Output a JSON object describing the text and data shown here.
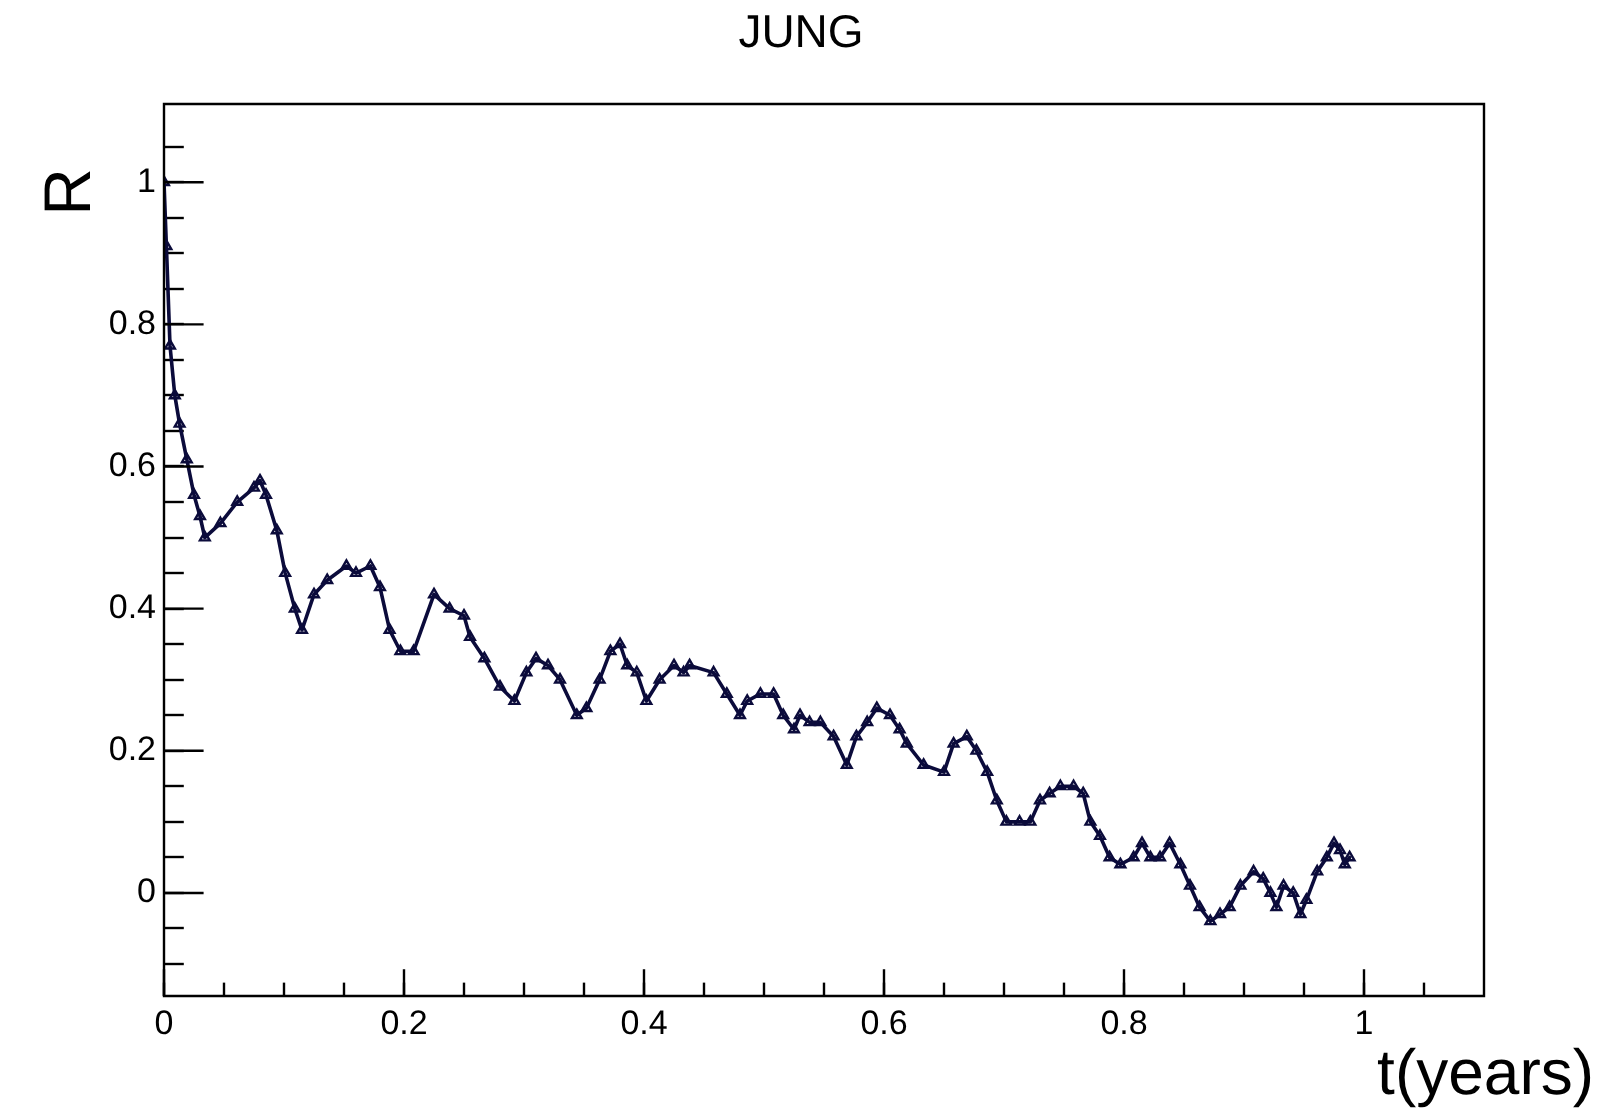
{
  "chart_data": {
    "type": "line",
    "title": "JUNG",
    "xlabel": "t(years)",
    "ylabel": "R",
    "x": [
      0,
      0.002,
      0.005,
      0.009,
      0.013,
      0.019,
      0.025,
      0.03,
      0.034,
      0.047,
      0.061,
      0.075,
      0.08,
      0.085,
      0.094,
      0.101,
      0.109,
      0.115,
      0.125,
      0.136,
      0.152,
      0.16,
      0.172,
      0.18,
      0.188,
      0.197,
      0.208,
      0.225,
      0.238,
      0.25,
      0.255,
      0.267,
      0.28,
      0.292,
      0.302,
      0.31,
      0.32,
      0.33,
      0.344,
      0.352,
      0.363,
      0.372,
      0.38,
      0.386,
      0.394,
      0.402,
      0.413,
      0.425,
      0.433,
      0.438,
      0.458,
      0.469,
      0.48,
      0.486,
      0.497,
      0.508,
      0.516,
      0.525,
      0.53,
      0.538,
      0.547,
      0.558,
      0.569,
      0.577,
      0.586,
      0.594,
      0.605,
      0.613,
      0.619,
      0.633,
      0.65,
      0.658,
      0.669,
      0.677,
      0.686,
      0.694,
      0.702,
      0.713,
      0.722,
      0.73,
      0.738,
      0.747,
      0.758,
      0.766,
      0.772,
      0.78,
      0.788,
      0.797,
      0.808,
      0.815,
      0.822,
      0.83,
      0.838,
      0.847,
      0.855,
      0.863,
      0.872,
      0.88,
      0.888,
      0.897,
      0.908,
      0.916,
      0.922,
      0.927,
      0.933,
      0.941,
      0.947,
      0.952,
      0.961,
      0.969,
      0.975,
      0.98,
      0.984,
      0.988
    ],
    "series": [
      {
        "color": "#0b0b3b",
        "values": [
          1,
          0.91,
          0.77,
          0.7,
          0.66,
          0.61,
          0.56,
          0.53,
          0.5,
          0.52,
          0.55,
          0.57,
          0.58,
          0.56,
          0.51,
          0.45,
          0.4,
          0.37,
          0.42,
          0.44,
          0.46,
          0.45,
          0.46,
          0.43,
          0.37,
          0.34,
          0.34,
          0.42,
          0.4,
          0.39,
          0.36,
          0.33,
          0.29,
          0.27,
          0.31,
          0.33,
          0.32,
          0.3,
          0.25,
          0.26,
          0.3,
          0.34,
          0.35,
          0.32,
          0.31,
          0.27,
          0.3,
          0.32,
          0.31,
          0.32,
          0.31,
          0.28,
          0.25,
          0.27,
          0.28,
          0.28,
          0.25,
          0.23,
          0.25,
          0.24,
          0.24,
          0.22,
          0.18,
          0.22,
          0.24,
          0.26,
          0.25,
          0.23,
          0.21,
          0.18,
          0.17,
          0.21,
          0.22,
          0.2,
          0.17,
          0.13,
          0.1,
          0.1,
          0.1,
          0.13,
          0.14,
          0.15,
          0.15,
          0.14,
          0.1,
          0.08,
          0.05,
          0.04,
          0.05,
          0.07,
          0.05,
          0.05,
          0.07,
          0.04,
          0.01,
          -0.02,
          -0.04,
          -0.03,
          -0.02,
          0.01,
          0.03,
          0.02,
          0,
          -0.02,
          0.01,
          0,
          -0.03,
          -0.01,
          0.03,
          0.05,
          0.07,
          0.06,
          0.04,
          0.05
        ]
      }
    ],
    "marker": "triangle",
    "xlim": [
      0,
      1.1
    ],
    "xticks": [
      0,
      {
        "value": 0.05,
        "label": null
      },
      {
        "value": 0.1,
        "label": null
      },
      {
        "value": 0.15,
        "label": null
      },
      0.2,
      {
        "value": 0.25,
        "label": null
      },
      {
        "value": 0.3,
        "label": null
      },
      {
        "value": 0.35,
        "label": null
      },
      0.4,
      {
        "value": 0.45,
        "label": null
      },
      {
        "value": 0.5,
        "label": null
      },
      {
        "value": 0.55,
        "label": null
      },
      0.6,
      {
        "value": 0.65,
        "label": null
      },
      {
        "value": 0.7,
        "label": null
      },
      {
        "value": 0.75,
        "label": null
      },
      0.8,
      {
        "value": 0.85,
        "label": null
      },
      {
        "value": 0.9,
        "label": null
      },
      {
        "value": 0.95,
        "label": null
      },
      1,
      {
        "value": 1.05,
        "label": null
      }
    ],
    "ylim": [
      -0.145,
      1.11
    ],
    "yticks": [
      {
        "value": -0.1,
        "label": null
      },
      {
        "value": -0.05,
        "label": null
      },
      0,
      {
        "value": 0.05,
        "label": null
      },
      {
        "value": 0.1,
        "label": null
      },
      {
        "value": 0.15,
        "label": null
      },
      0.2,
      {
        "value": 0.25,
        "label": null
      },
      {
        "value": 0.3,
        "label": null
      },
      {
        "value": 0.35,
        "label": null
      },
      0.4,
      {
        "value": 0.45,
        "label": null
      },
      {
        "value": 0.5,
        "label": null
      },
      {
        "value": 0.55,
        "label": null
      },
      0.6,
      {
        "value": 0.65,
        "label": null
      },
      {
        "value": 0.7,
        "label": null
      },
      {
        "value": 0.75,
        "label": null
      },
      0.8,
      {
        "value": 0.85,
        "label": null
      },
      {
        "value": 0.9,
        "label": null
      },
      {
        "value": 0.95,
        "label": null
      },
      1,
      {
        "value": 1.05,
        "label": null
      }
    ]
  }
}
